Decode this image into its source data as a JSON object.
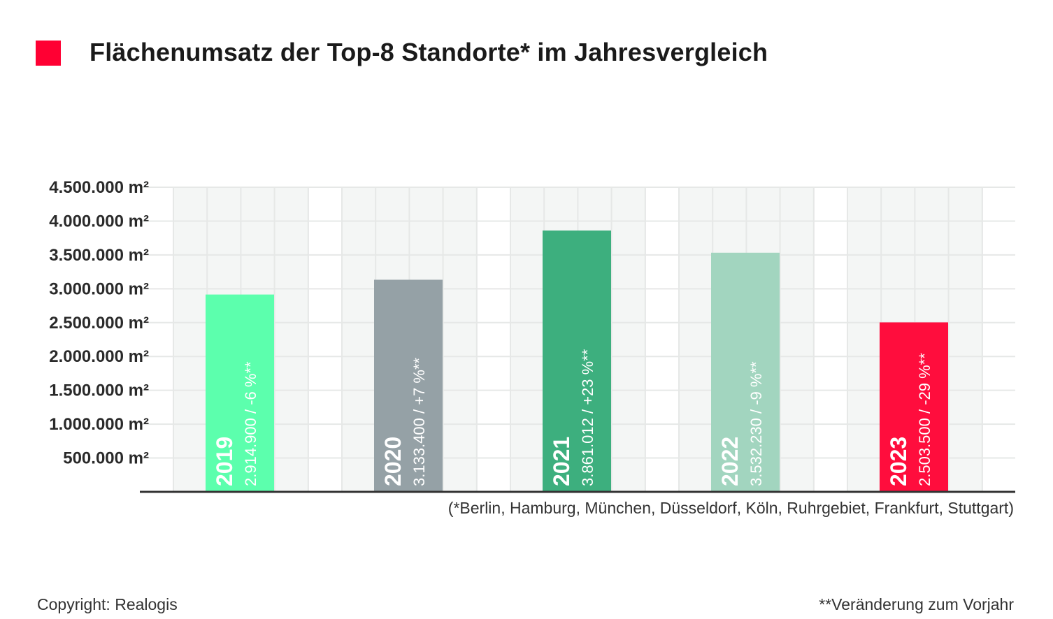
{
  "title": "Flächenumsatz der Top-8 Standorte* im Jahresvergleich",
  "colors": {
    "title_marker": "#ff0033",
    "grid_background": "#f4f6f5",
    "grid_line": "#e6e8e7",
    "axis_line": "#333333",
    "label_text": "#ffffff"
  },
  "footnote": "(*Berlin, Hamburg, München, Düsseldorf, Köln, Ruhrgebiet, Frankfurt, Stuttgart)",
  "copyright": "Copyright: Realogis",
  "change_note": "**Veränderung zum Vorjahr",
  "chart_data": {
    "type": "bar",
    "categories": [
      "2019",
      "2020",
      "2021",
      "2022",
      "2023"
    ],
    "values": [
      2914900,
      3133400,
      3861012,
      3532230,
      2503500
    ],
    "value_labels": [
      "2.914.900 / -6 %**",
      "3.133.400 / +7 %**",
      "3.861.012 / +23 %**",
      "3.532.230 / -9 %**",
      "2.503.500 / -29 %**"
    ],
    "bar_colors": [
      "#5cffad",
      "#95a1a6",
      "#3daf7e",
      "#a2d5bf",
      "#ff0d3d"
    ],
    "y_ticks": [
      500000,
      1000000,
      1500000,
      2000000,
      2500000,
      3000000,
      3500000,
      4000000,
      4500000
    ],
    "y_tick_labels": [
      "500.000 m²",
      "1.000.000 m²",
      "1.500.000 m²",
      "2.000.000 m²",
      "2.500.000 m²",
      "3.000.000 m²",
      "3.500.000 m²",
      "4.000.000 m²",
      "4.500.000 m²"
    ],
    "ylim": [
      0,
      4500000
    ],
    "grid": true,
    "labels_inside_bars": true
  }
}
